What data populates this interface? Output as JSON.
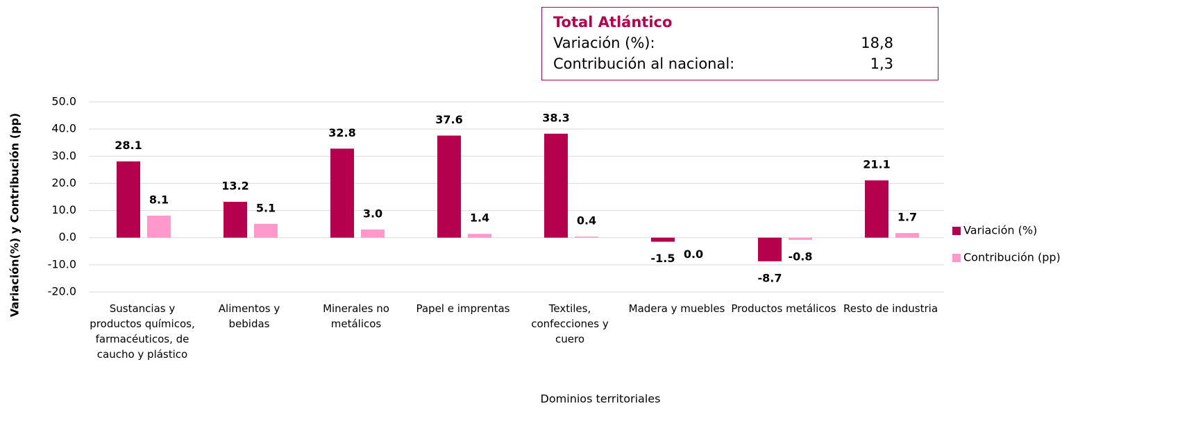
{
  "chart_data": {
    "type": "bar",
    "y_label": "Variación(%) y Contribución (pp)",
    "x_label": "Dominios territoriales",
    "categories": [
      "Sustancias y productos químicos, farmacéuticos, de caucho y plástico",
      "Alimentos y bebidas",
      "Minerales no metálicos",
      "Papel e imprentas",
      "Textiles, confecciones y cuero",
      "Madera y muebles",
      "Productos metálicos",
      "Resto de industria"
    ],
    "series": [
      {
        "name": "Variación (%)",
        "color": "#b5004e",
        "values": [
          28.1,
          13.2,
          32.8,
          37.6,
          38.3,
          -1.5,
          -8.7,
          21.1
        ],
        "value_labels": [
          "28.1",
          "13.2",
          "32.8",
          "37.6",
          "38.3",
          "-1.5",
          "-8.7",
          "21.1"
        ]
      },
      {
        "name": "Contribución (pp)",
        "color": "#ff99cc",
        "values": [
          8.1,
          5.1,
          3.0,
          1.4,
          0.4,
          0.0,
          -0.8,
          1.7
        ],
        "value_labels": [
          "8.1",
          "5.1",
          "3.0",
          "1.4",
          "0.4",
          "0.0",
          "-0.8",
          "1.7"
        ]
      }
    ],
    "ylim": [
      -20,
      50
    ],
    "yticks": [
      {
        "value": -20,
        "label": "-20.0"
      },
      {
        "value": -10,
        "label": "-10.0"
      },
      {
        "value": 0,
        "label": "0.0"
      },
      {
        "value": 10,
        "label": "10.0"
      },
      {
        "value": 20,
        "label": "20.0"
      },
      {
        "value": 30,
        "label": "30.0"
      },
      {
        "value": 40,
        "label": "40.0"
      },
      {
        "value": 50,
        "label": "50.0"
      }
    ],
    "grid": true,
    "legend": "right",
    "annotation": {
      "title": "Total Atlántico",
      "rows": [
        [
          "Variación (%):",
          "18,8"
        ],
        [
          "Contribución al nacional:",
          "1,3"
        ]
      ]
    }
  }
}
